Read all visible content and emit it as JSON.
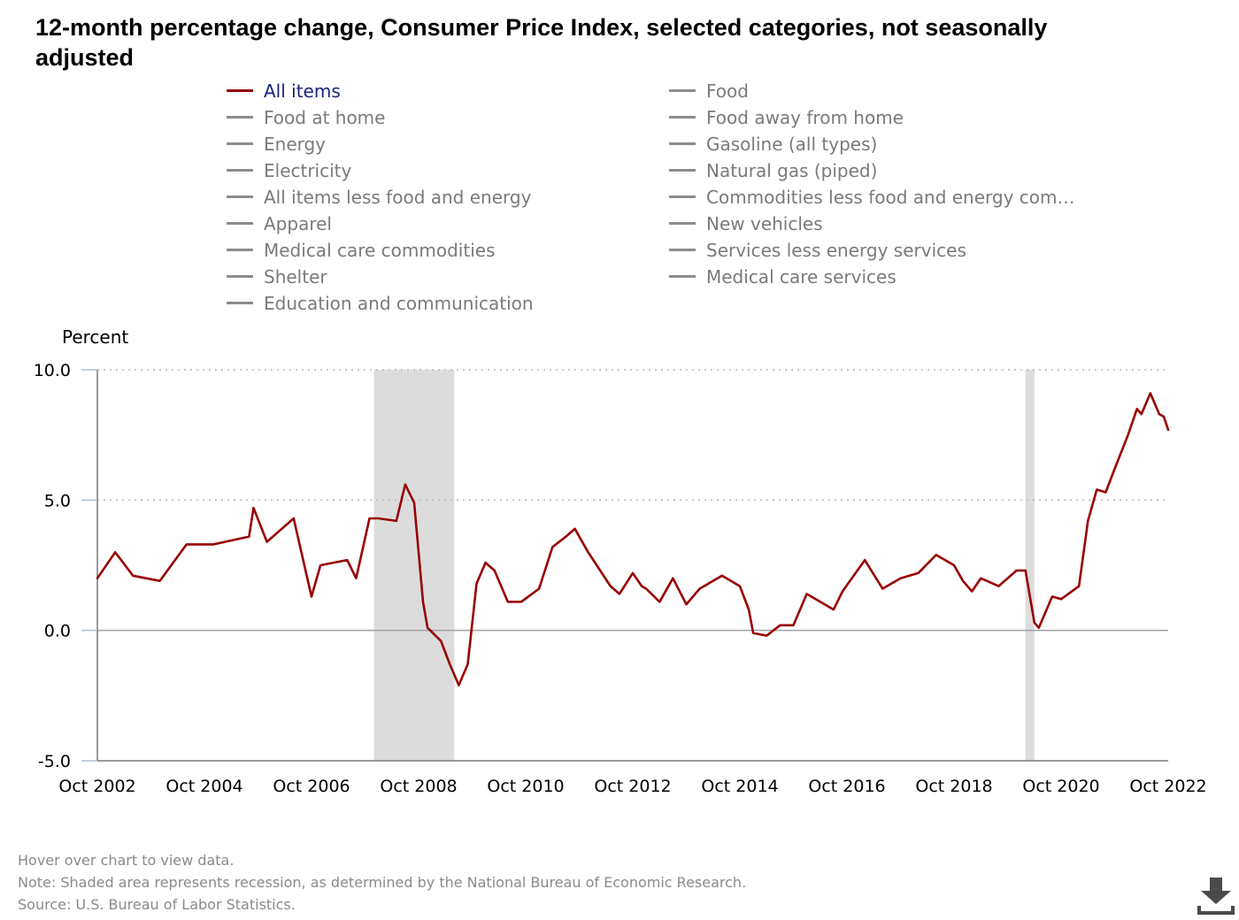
{
  "title": "12-month percentage change, Consumer Price Index, selected categories, not seasonally adjusted",
  "legend": {
    "left": [
      "All items",
      "Food at home",
      "Energy",
      "Electricity",
      "All items less food and energy",
      "Apparel",
      "Medical care commodities",
      "Shelter",
      "Education and communication"
    ],
    "right": [
      "Food",
      "Food away from home",
      "Gasoline (all types)",
      "Natural gas (piped)",
      "Commodities less food and energy com…",
      "New vehicles",
      "Services less energy services",
      "Medical care services"
    ],
    "active": "All items"
  },
  "notes": {
    "hover": "Hover over chart to view data.",
    "note": "Note: Shaded area represents recession, as determined by the National Bureau of Economic Research.",
    "source": "Source: U.S. Bureau of Labor Statistics."
  },
  "colors": {
    "active_series": "#990000",
    "inactive_series": "#8c8c8c",
    "recession": "#dcdcdc"
  },
  "icons": {
    "download": "download-icon"
  },
  "chart_data": {
    "type": "line",
    "ylabel": "Percent",
    "ylim": [
      -5.0,
      10.0
    ],
    "yticks": [
      -5.0,
      0.0,
      5.0,
      10.0
    ],
    "ytick_labels": [
      "-5.0",
      "0.0",
      "5.0",
      "10.0"
    ],
    "xlim": [
      "Oct 2002",
      "Oct 2022"
    ],
    "xtick_labels": [
      "Oct 2002",
      "Oct 2004",
      "Oct 2006",
      "Oct 2008",
      "Oct 2010",
      "Oct 2012",
      "Oct 2014",
      "Oct 2016",
      "Oct 2018",
      "Oct 2020",
      "Oct 2022"
    ],
    "grid": "horizontal dotted at 5.0 and 10.0",
    "recessions": [
      [
        "Dec 2007",
        "Jun 2009"
      ],
      [
        "Feb 2020",
        "Apr 2020"
      ]
    ],
    "series": [
      {
        "name": "All items",
        "points": [
          [
            "Oct 2002",
            2.0
          ],
          [
            "Feb 2003",
            3.0
          ],
          [
            "Jun 2003",
            2.1
          ],
          [
            "Dec 2003",
            1.9
          ],
          [
            "Jun 2004",
            3.3
          ],
          [
            "Dec 2004",
            3.3
          ],
          [
            "Aug 2005",
            3.6
          ],
          [
            "Sep 2005",
            4.7
          ],
          [
            "Dec 2005",
            3.4
          ],
          [
            "Jun 2006",
            4.3
          ],
          [
            "Oct 2006",
            1.3
          ],
          [
            "Dec 2006",
            2.5
          ],
          [
            "Jun 2007",
            2.7
          ],
          [
            "Aug 2007",
            2.0
          ],
          [
            "Nov 2007",
            4.3
          ],
          [
            "Jan 2008",
            4.3
          ],
          [
            "May 2008",
            4.2
          ],
          [
            "Jul 2008",
            5.6
          ],
          [
            "Sep 2008",
            4.9
          ],
          [
            "Nov 2008",
            1.1
          ],
          [
            "Dec 2008",
            0.1
          ],
          [
            "Mar 2009",
            -0.4
          ],
          [
            "May 2009",
            -1.3
          ],
          [
            "Jul 2009",
            -2.1
          ],
          [
            "Sep 2009",
            -1.3
          ],
          [
            "Nov 2009",
            1.8
          ],
          [
            "Jan 2010",
            2.6
          ],
          [
            "Mar 2010",
            2.3
          ],
          [
            "Jun 2010",
            1.1
          ],
          [
            "Sep 2010",
            1.1
          ],
          [
            "Jan 2011",
            1.6
          ],
          [
            "Apr 2011",
            3.2
          ],
          [
            "Jul 2011",
            3.6
          ],
          [
            "Sep 2011",
            3.9
          ],
          [
            "Dec 2011",
            3.0
          ],
          [
            "May 2012",
            1.7
          ],
          [
            "Jul 2012",
            1.4
          ],
          [
            "Oct 2012",
            2.2
          ],
          [
            "Dec 2012",
            1.7
          ],
          [
            "Jan 2013",
            1.6
          ],
          [
            "Apr 2013",
            1.1
          ],
          [
            "Jul 2013",
            2.0
          ],
          [
            "Oct 2013",
            1.0
          ],
          [
            "Jan 2014",
            1.6
          ],
          [
            "Jun 2014",
            2.1
          ],
          [
            "Oct 2014",
            1.7
          ],
          [
            "Dec 2014",
            0.8
          ],
          [
            "Jan 2015",
            -0.1
          ],
          [
            "Apr 2015",
            -0.2
          ],
          [
            "Jul 2015",
            0.2
          ],
          [
            "Oct 2015",
            0.2
          ],
          [
            "Jan 2016",
            1.4
          ],
          [
            "Apr 2016",
            1.1
          ],
          [
            "Jul 2016",
            0.8
          ],
          [
            "Sep 2016",
            1.5
          ],
          [
            "Feb 2017",
            2.7
          ],
          [
            "Jun 2017",
            1.6
          ],
          [
            "Oct 2017",
            2.0
          ],
          [
            "Feb 2018",
            2.2
          ],
          [
            "Jun 2018",
            2.9
          ],
          [
            "Aug 2018",
            2.7
          ],
          [
            "Oct 2018",
            2.5
          ],
          [
            "Dec 2018",
            1.9
          ],
          [
            "Feb 2019",
            1.5
          ],
          [
            "Apr 2019",
            2.0
          ],
          [
            "Aug 2019",
            1.7
          ],
          [
            "Dec 2019",
            2.3
          ],
          [
            "Feb 2020",
            2.3
          ],
          [
            "Apr 2020",
            0.3
          ],
          [
            "May 2020",
            0.1
          ],
          [
            "Aug 2020",
            1.3
          ],
          [
            "Oct 2020",
            1.2
          ],
          [
            "Feb 2021",
            1.7
          ],
          [
            "Apr 2021",
            4.2
          ],
          [
            "Jun 2021",
            5.4
          ],
          [
            "Aug 2021",
            5.3
          ],
          [
            "Oct 2021",
            6.2
          ],
          [
            "Jan 2022",
            7.5
          ],
          [
            "Mar 2022",
            8.5
          ],
          [
            "Apr 2022",
            8.3
          ],
          [
            "Jun 2022",
            9.1
          ],
          [
            "Aug 2022",
            8.3
          ],
          [
            "Sep 2022",
            8.2
          ],
          [
            "Oct 2022",
            7.7
          ]
        ]
      }
    ]
  }
}
